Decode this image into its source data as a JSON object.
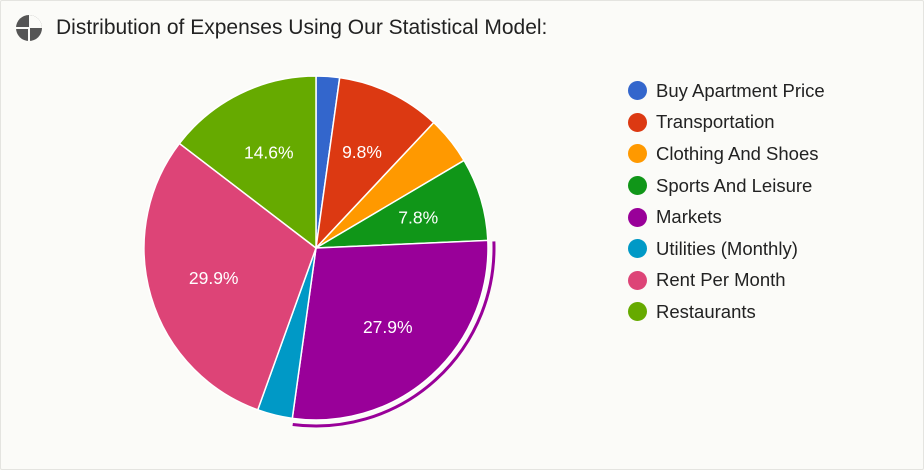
{
  "header": {
    "title": "Distribution of Expenses Using Our Statistical Model:",
    "icon": "pie-chart-icon"
  },
  "chart_data": {
    "type": "pie",
    "title": "Distribution of Expenses Using Our Statistical Model:",
    "legend_position": "right",
    "highlighted_slice": "Markets",
    "slices": [
      {
        "label": "Buy Apartment Price",
        "value": 2.2,
        "data_label": "",
        "color": "#3366cc"
      },
      {
        "label": "Transportation",
        "value": 9.8,
        "data_label": "9.8%",
        "color": "#dc3912"
      },
      {
        "label": "Clothing And Shoes",
        "value": 4.5,
        "data_label": "",
        "color": "#ff9900"
      },
      {
        "label": "Sports And Leisure",
        "value": 7.8,
        "data_label": "7.8%",
        "color": "#109618"
      },
      {
        "label": "Markets",
        "value": 27.9,
        "data_label": "27.9%",
        "color": "#990099"
      },
      {
        "label": "Utilities (Monthly)",
        "value": 3.3,
        "data_label": "",
        "color": "#0099c6"
      },
      {
        "label": "Rent Per Month",
        "value": 29.9,
        "data_label": "29.9%",
        "color": "#dd4477"
      },
      {
        "label": "Restaurants",
        "value": 14.6,
        "data_label": "14.6%",
        "color": "#66aa00"
      }
    ]
  }
}
